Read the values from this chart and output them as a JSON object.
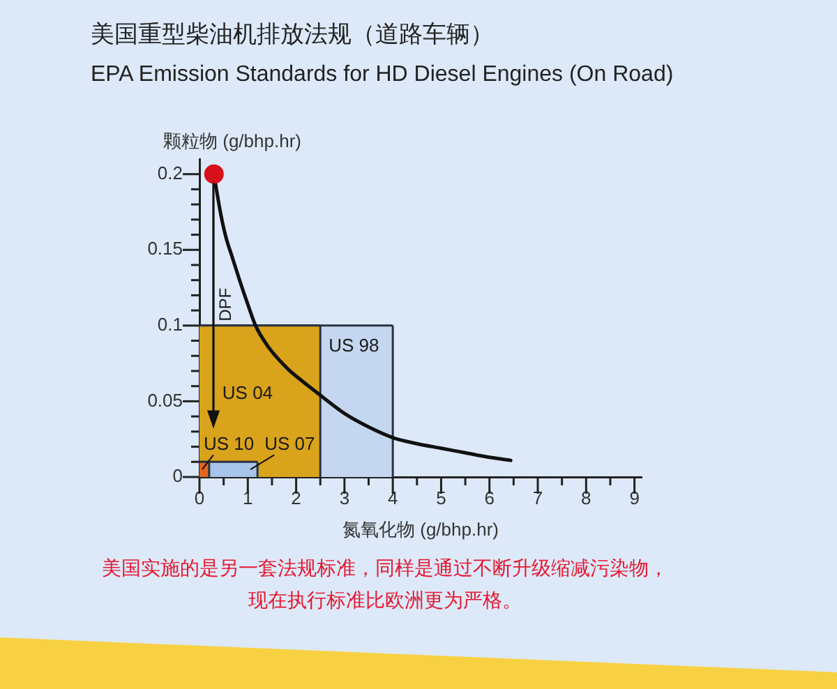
{
  "chart_data": {
    "type": "area",
    "title": "美国重型柴油机排放法规（道路车辆）",
    "subtitle": "EPA Emission Standards for HD Diesel Engines (On Road)",
    "xlabel": "氮氧化物 (g/bhp.hr)",
    "ylabel": "颗粒物 (g/bhp.hr)",
    "series": [
      {
        "name": "US 98",
        "color": "#c5d7f0",
        "x": [
          0,
          4
        ],
        "values": [
          0.1,
          0.1
        ]
      },
      {
        "name": "US 04",
        "color": "#d9a31b",
        "x": [
          0,
          2.5
        ],
        "values": [
          0.1,
          0.1
        ]
      },
      {
        "name": "US 07",
        "color": "#a9c4ea",
        "x": [
          0,
          1.2
        ],
        "values": [
          0.01,
          0.01
        ]
      },
      {
        "name": "US 10",
        "color": "#e2661c",
        "x": [
          0,
          0.2
        ],
        "values": [
          0.01,
          0.01
        ]
      },
      {
        "type": "line",
        "color": "#111111",
        "x": [
          0.3,
          0.35,
          0.45,
          0.55,
          0.68,
          0.85,
          1.0,
          1.16,
          1.4,
          1.6,
          1.84,
          2.1,
          2.5,
          3.0,
          3.5,
          4.0,
          4.5,
          5.0,
          5.5,
          6.0,
          6.44
        ],
        "values": [
          0.2,
          0.19,
          0.172,
          0.158,
          0.145,
          0.128,
          0.114,
          0.1,
          0.087,
          0.079,
          0.071,
          0.064,
          0.054,
          0.042,
          0.033,
          0.026,
          0.022,
          0.019,
          0.016,
          0.013,
          0.011
        ]
      },
      {
        "type": "scatter",
        "color": "#d8101c",
        "marker": "circle",
        "x": [
          0.3
        ],
        "values": [
          0.2
        ]
      }
    ],
    "xlim": [
      0,
      9.15
    ],
    "xticks": [
      0,
      {
        "value": 0.5,
        "label": null
      },
      1,
      {
        "value": 1.5,
        "label": null
      },
      2,
      {
        "value": 2.5,
        "label": null
      },
      3,
      {
        "value": 3.5,
        "label": null
      },
      4,
      {
        "value": 4.5,
        "label": null
      },
      5,
      {
        "value": 5.5,
        "label": null
      },
      6,
      {
        "value": 6.5,
        "label": null
      },
      7,
      {
        "value": 7.5,
        "label": null
      },
      8,
      {
        "value": 8.5,
        "label": null
      },
      9
    ],
    "ylim": [
      0,
      0.21
    ],
    "yticks": [
      0,
      {
        "value": 0.01,
        "label": null
      },
      {
        "value": 0.02,
        "label": null
      },
      {
        "value": 0.03,
        "label": null
      },
      {
        "value": 0.04,
        "label": null
      },
      0.05,
      {
        "value": 0.06,
        "label": null
      },
      {
        "value": 0.07,
        "label": null
      },
      {
        "value": 0.08,
        "label": null
      },
      {
        "value": 0.09,
        "label": null
      },
      0.1,
      {
        "value": 0.11,
        "label": null
      },
      {
        "value": 0.12,
        "label": null
      },
      {
        "value": 0.13,
        "label": null
      },
      {
        "value": 0.14,
        "label": null
      },
      0.15,
      {
        "value": 0.16,
        "label": null
      },
      {
        "value": 0.17,
        "label": null
      },
      {
        "value": 0.18,
        "label": null
      },
      {
        "value": 0.19,
        "label": null
      },
      0.2
    ],
    "annotations": [
      "DPF",
      "美国实施的是另一套法规标准，同样是通过不断升级缩减污染物，现在执行标准比欧洲更为严格。"
    ]
  }
}
